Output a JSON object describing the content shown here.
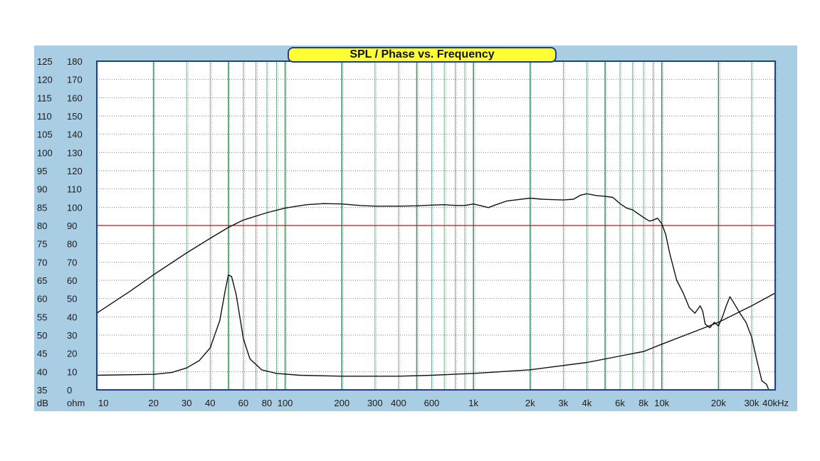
{
  "colors": {
    "frame": "#a9cde3",
    "plot_bg": "#ffffff",
    "plot_border": "#1f3f8a",
    "major_grid": "#2e8b57",
    "minor_grid": "#4a4a4a",
    "reference_line": "#cc1111",
    "curve": "#111111",
    "title_bg": "#ffff33"
  },
  "chart_data": {
    "type": "line",
    "title": "SPL / Phase vs. Frequency",
    "xscale": "log",
    "xlim": [
      10,
      40000
    ],
    "y_left_label": "dB",
    "y_right_label": "ohm",
    "ylim_db": [
      35,
      125
    ],
    "ylim_ohm": [
      0,
      180
    ],
    "y_ticks_db": [
      "125",
      "120",
      "115",
      "110",
      "105",
      "100",
      "95",
      "90",
      "85",
      "80",
      "75",
      "70",
      "65",
      "60",
      "55",
      "50",
      "45",
      "40",
      "35"
    ],
    "y_ticks_ohm": [
      "180",
      "170",
      "160",
      "150",
      "140",
      "130",
      "120",
      "110",
      "100",
      "90",
      "80",
      "70",
      "60",
      "50",
      "40",
      "30",
      "20",
      "10",
      "0"
    ],
    "x_ticks": [
      {
        "v": 10,
        "label": "10"
      },
      {
        "v": 20,
        "label": "20"
      },
      {
        "v": 30,
        "label": "30"
      },
      {
        "v": 40,
        "label": "40"
      },
      {
        "v": 60,
        "label": "60"
      },
      {
        "v": 80,
        "label": "80"
      },
      {
        "v": 100,
        "label": "100"
      },
      {
        "v": 200,
        "label": "200"
      },
      {
        "v": 300,
        "label": "300"
      },
      {
        "v": 400,
        "label": "400"
      },
      {
        "v": 600,
        "label": "600"
      },
      {
        "v": 1000,
        "label": "1k"
      },
      {
        "v": 2000,
        "label": "2k"
      },
      {
        "v": 3000,
        "label": "3k"
      },
      {
        "v": 4000,
        "label": "4k"
      },
      {
        "v": 6000,
        "label": "6k"
      },
      {
        "v": 8000,
        "label": "8k"
      },
      {
        "v": 10000,
        "label": "10k"
      },
      {
        "v": 20000,
        "label": "20k"
      },
      {
        "v": 30000,
        "label": "30k"
      },
      {
        "v": 40000,
        "label": "40kHz"
      }
    ],
    "grid": true,
    "reference_line": {
      "db": 80
    },
    "series": [
      {
        "axis": "db",
        "points": [
          [
            10,
            56
          ],
          [
            15,
            62
          ],
          [
            20,
            66.5
          ],
          [
            30,
            72.5
          ],
          [
            40,
            76.5
          ],
          [
            50,
            79.5
          ],
          [
            60,
            81.5
          ],
          [
            80,
            83.5
          ],
          [
            100,
            84.8
          ],
          [
            130,
            85.7
          ],
          [
            160,
            86
          ],
          [
            200,
            85.9
          ],
          [
            250,
            85.5
          ],
          [
            300,
            85.3
          ],
          [
            400,
            85.3
          ],
          [
            500,
            85.4
          ],
          [
            600,
            85.6
          ],
          [
            700,
            85.7
          ],
          [
            800,
            85.5
          ],
          [
            900,
            85.5
          ],
          [
            1000,
            85.9
          ],
          [
            1100,
            85.4
          ],
          [
            1200,
            84.9
          ],
          [
            1300,
            85.6
          ],
          [
            1500,
            86.7
          ],
          [
            2000,
            87.5
          ],
          [
            2300,
            87.2
          ],
          [
            2600,
            87.1
          ],
          [
            3000,
            87.0
          ],
          [
            3400,
            87.2
          ],
          [
            3700,
            88.3
          ],
          [
            4000,
            88.7
          ],
          [
            4500,
            88.2
          ],
          [
            5000,
            88.0
          ],
          [
            5500,
            87.7
          ],
          [
            6000,
            86.0
          ],
          [
            6500,
            84.8
          ],
          [
            7000,
            84.3
          ],
          [
            8000,
            82.2
          ],
          [
            8600,
            81.2
          ],
          [
            9000,
            81.5
          ],
          [
            9500,
            82.0
          ],
          [
            10000,
            80.5
          ],
          [
            10500,
            77.5
          ],
          [
            11000,
            72.5
          ],
          [
            12000,
            65
          ],
          [
            13000,
            61.5
          ],
          [
            14000,
            57.5
          ],
          [
            15000,
            56
          ],
          [
            16000,
            58
          ],
          [
            16500,
            56.5
          ],
          [
            17000,
            53
          ],
          [
            18000,
            52
          ],
          [
            19000,
            53.5
          ],
          [
            20000,
            52.5
          ],
          [
            21000,
            55
          ],
          [
            22000,
            58
          ],
          [
            23000,
            60.5
          ],
          [
            24000,
            59
          ],
          [
            26000,
            56
          ],
          [
            28000,
            53.5
          ],
          [
            30000,
            49.5
          ],
          [
            32000,
            43
          ],
          [
            34000,
            37.5
          ],
          [
            36000,
            36.5
          ],
          [
            37000,
            35
          ]
        ]
      },
      {
        "axis": "ohm",
        "points": [
          [
            10,
            8
          ],
          [
            20,
            8.5
          ],
          [
            25,
            9.5
          ],
          [
            30,
            12
          ],
          [
            35,
            16
          ],
          [
            40,
            23
          ],
          [
            45,
            38
          ],
          [
            48,
            54
          ],
          [
            50,
            63
          ],
          [
            52,
            62
          ],
          [
            55,
            52
          ],
          [
            60,
            28
          ],
          [
            65,
            17
          ],
          [
            75,
            11
          ],
          [
            90,
            9
          ],
          [
            120,
            8
          ],
          [
            200,
            7.5
          ],
          [
            400,
            7.5
          ],
          [
            600,
            8
          ],
          [
            1000,
            9
          ],
          [
            2000,
            11
          ],
          [
            4000,
            15
          ],
          [
            6000,
            18.5
          ],
          [
            8000,
            21
          ],
          [
            10000,
            25
          ],
          [
            15000,
            32
          ],
          [
            20000,
            37
          ],
          [
            30000,
            46
          ],
          [
            40000,
            53
          ]
        ]
      }
    ]
  }
}
